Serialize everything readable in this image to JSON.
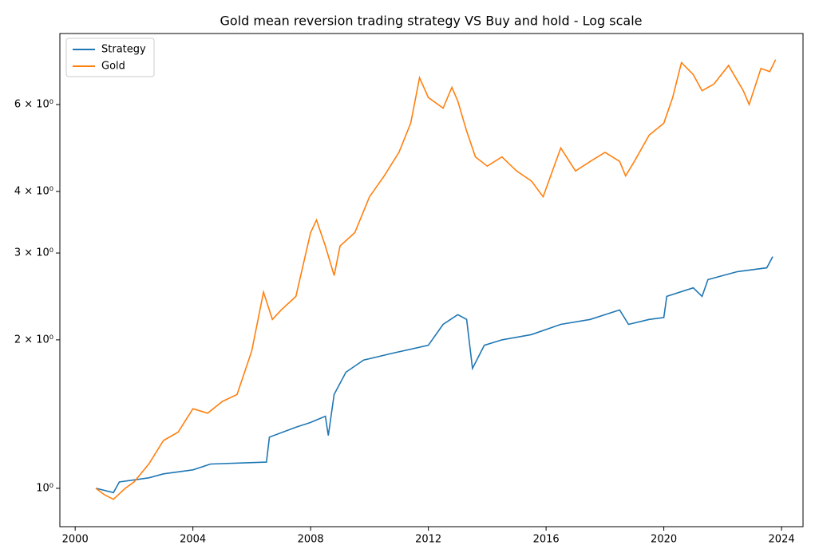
{
  "chart_data": {
    "type": "line",
    "title": "Gold mean reversion trading strategy VS Buy and hold - Log scale",
    "yscale": "log",
    "legend": "upper left",
    "grid": false,
    "xlim": [
      1999.48,
      2024.73
    ],
    "xticks": [
      2000,
      2004,
      2008,
      2012,
      2016,
      2020,
      2024
    ],
    "ylim": [
      0.836,
      8.36
    ],
    "yticks": [
      {
        "value": 1,
        "label": "10⁰"
      },
      {
        "value": 2,
        "label": "2 × 10⁰"
      },
      {
        "value": 3,
        "label": "3 × 10⁰"
      },
      {
        "value": 4,
        "label": "4 × 10⁰"
      },
      {
        "value": 6,
        "label": "6 × 10⁰"
      }
    ],
    "series": [
      {
        "name": "Strategy",
        "color": "#1f77b4",
        "x": [
          2000.7,
          2001.3,
          2001.5,
          2002.5,
          2003.0,
          2004.0,
          2004.6,
          2006.5,
          2006.6,
          2007.5,
          2008.0,
          2008.5,
          2008.6,
          2008.8,
          2009.2,
          2009.8,
          2010.8,
          2012.0,
          2012.5,
          2013.0,
          2013.3,
          2013.5,
          2013.9,
          2014.5,
          2015.5,
          2016.5,
          2017.5,
          2018.5,
          2018.8,
          2019.5,
          2020.0,
          2020.1,
          2021.0,
          2021.3,
          2021.5,
          2022.5,
          2023.5,
          2023.7
        ],
        "values": [
          1.0,
          0.98,
          1.03,
          1.05,
          1.07,
          1.09,
          1.12,
          1.13,
          1.27,
          1.33,
          1.36,
          1.4,
          1.28,
          1.55,
          1.72,
          1.82,
          1.88,
          1.95,
          2.15,
          2.25,
          2.2,
          1.75,
          1.95,
          2.0,
          2.05,
          2.15,
          2.2,
          2.3,
          2.15,
          2.2,
          2.22,
          2.45,
          2.55,
          2.45,
          2.65,
          2.75,
          2.8,
          2.95
        ]
      },
      {
        "name": "Gold",
        "color": "#ff7f0e",
        "x": [
          2000.7,
          2001.0,
          2001.3,
          2001.7,
          2002.0,
          2002.5,
          2003.0,
          2003.5,
          2004.0,
          2004.5,
          2005.0,
          2005.5,
          2006.0,
          2006.4,
          2006.7,
          2007.0,
          2007.5,
          2008.0,
          2008.2,
          2008.5,
          2008.8,
          2009.0,
          2009.5,
          2010.0,
          2010.5,
          2011.0,
          2011.4,
          2011.7,
          2012.0,
          2012.5,
          2012.8,
          2013.0,
          2013.3,
          2013.6,
          2014.0,
          2014.5,
          2015.0,
          2015.5,
          2015.9,
          2016.5,
          2017.0,
          2017.5,
          2018.0,
          2018.5,
          2018.7,
          2019.0,
          2019.5,
          2020.0,
          2020.3,
          2020.6,
          2021.0,
          2021.3,
          2021.7,
          2022.2,
          2022.7,
          2022.9,
          2023.3,
          2023.6,
          2023.8
        ],
        "values": [
          1.0,
          0.97,
          0.95,
          1.0,
          1.03,
          1.12,
          1.25,
          1.3,
          1.45,
          1.42,
          1.5,
          1.55,
          1.9,
          2.5,
          2.2,
          2.3,
          2.45,
          3.3,
          3.5,
          3.1,
          2.7,
          3.1,
          3.3,
          3.9,
          4.3,
          4.8,
          5.5,
          6.8,
          6.2,
          5.9,
          6.5,
          6.1,
          5.3,
          4.7,
          4.5,
          4.7,
          4.4,
          4.2,
          3.9,
          4.9,
          4.4,
          4.6,
          4.8,
          4.6,
          4.3,
          4.6,
          5.2,
          5.5,
          6.2,
          7.3,
          6.9,
          6.4,
          6.6,
          7.2,
          6.4,
          6.0,
          7.1,
          7.0,
          7.4
        ]
      }
    ]
  }
}
